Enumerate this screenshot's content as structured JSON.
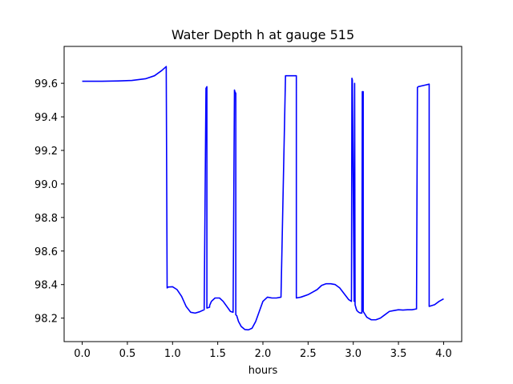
{
  "chart_data": {
    "type": "line",
    "title": "Water Depth h at gauge 515",
    "xlabel": "hours",
    "ylabel": "",
    "xlim": [
      -0.2,
      4.2
    ],
    "ylim": [
      98.06,
      99.82
    ],
    "xticks": [
      0.0,
      0.5,
      1.0,
      1.5,
      2.0,
      2.5,
      3.0,
      3.5,
      4.0
    ],
    "xtick_labels": [
      "0.0",
      "0.5",
      "1.0",
      "1.5",
      "2.0",
      "2.5",
      "3.0",
      "3.5",
      "4.0"
    ],
    "yticks": [
      98.2,
      98.4,
      98.6,
      98.8,
      99.0,
      99.2,
      99.4,
      99.6
    ],
    "ytick_labels": [
      "98.2",
      "98.4",
      "98.6",
      "98.8",
      "99.0",
      "99.2",
      "99.4",
      "99.6"
    ],
    "grid": false,
    "series": [
      {
        "color": "#0000ff",
        "x": [
          0.0,
          0.2,
          0.4,
          0.55,
          0.7,
          0.8,
          0.88,
          0.93,
          0.94,
          0.95,
          1.0,
          1.05,
          1.1,
          1.15,
          1.2,
          1.25,
          1.3,
          1.35,
          1.37,
          1.38,
          1.38,
          1.41,
          1.41,
          1.43,
          1.47,
          1.52,
          1.56,
          1.6,
          1.64,
          1.67,
          1.685,
          1.69,
          1.7,
          1.7,
          1.71,
          1.73,
          1.76,
          1.8,
          1.84,
          1.88,
          1.92,
          1.96,
          2.0,
          2.05,
          2.1,
          2.15,
          2.2,
          2.25,
          2.3,
          2.3,
          2.37,
          2.37,
          2.42,
          2.5,
          2.55,
          2.6,
          2.65,
          2.7,
          2.75,
          2.8,
          2.85,
          2.9,
          2.95,
          2.98,
          2.985,
          2.99,
          3.01,
          3.015,
          3.02,
          3.03,
          3.04,
          3.06,
          3.08,
          3.095,
          3.1,
          3.11,
          3.11,
          3.15,
          3.2,
          3.25,
          3.3,
          3.35,
          3.4,
          3.45,
          3.5,
          3.55,
          3.6,
          3.65,
          3.7,
          3.71,
          3.72,
          3.8,
          3.84,
          3.84,
          3.9,
          3.95,
          4.0
        ],
        "y": [
          99.612,
          99.612,
          99.614,
          99.617,
          99.627,
          99.645,
          99.676,
          99.7,
          98.38,
          98.385,
          98.387,
          98.37,
          98.33,
          98.27,
          98.235,
          98.23,
          98.238,
          98.25,
          99.57,
          99.58,
          98.26,
          98.265,
          98.275,
          98.3,
          98.32,
          98.32,
          98.3,
          98.27,
          98.24,
          98.235,
          99.56,
          99.55,
          99.54,
          98.22,
          98.215,
          98.18,
          98.15,
          98.132,
          98.13,
          98.14,
          98.18,
          98.24,
          98.3,
          98.325,
          98.32,
          98.32,
          98.325,
          99.645,
          99.645,
          99.645,
          99.645,
          98.32,
          98.325,
          98.34,
          98.355,
          98.37,
          98.395,
          98.405,
          98.405,
          98.4,
          98.38,
          98.345,
          98.31,
          98.3,
          99.63,
          99.62,
          98.3,
          99.6,
          98.28,
          98.26,
          98.245,
          98.235,
          98.23,
          98.23,
          99.55,
          99.55,
          98.24,
          98.205,
          98.19,
          98.19,
          98.2,
          98.22,
          98.24,
          98.245,
          98.25,
          98.248,
          98.25,
          98.25,
          98.255,
          99.575,
          99.58,
          99.59,
          99.595,
          98.27,
          98.28,
          98.3,
          98.315
        ]
      }
    ]
  }
}
